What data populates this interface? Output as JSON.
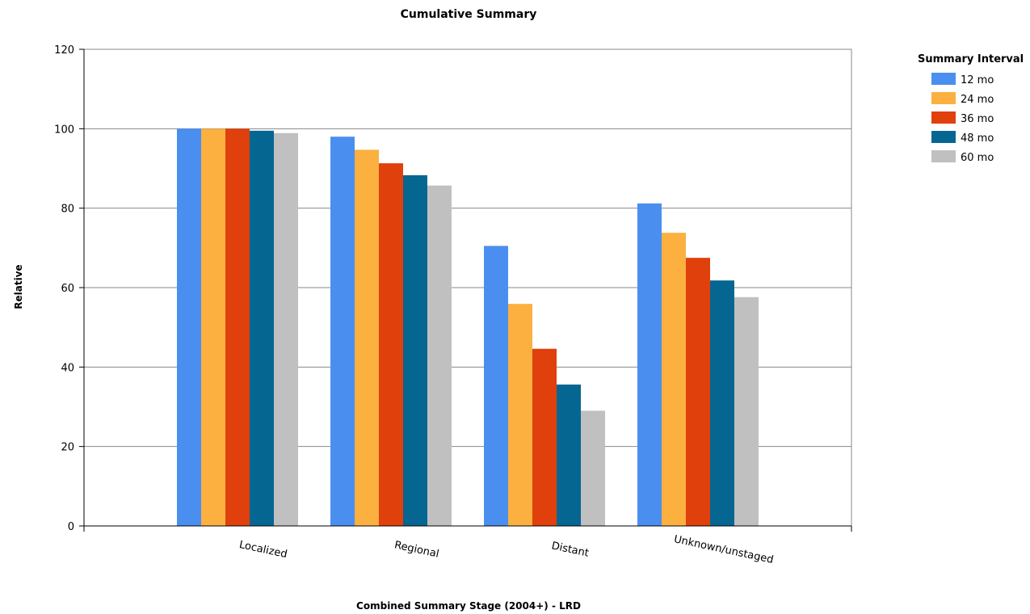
{
  "chart_data": {
    "type": "bar",
    "title": "Cumulative Summary",
    "xlabel": "Combined Summary Stage (2004+) - LRD",
    "ylabel": "Relative",
    "ylim": [
      0,
      120
    ],
    "yticks": [
      0,
      20,
      40,
      60,
      80,
      100,
      120
    ],
    "grid": true,
    "legend": {
      "title": "Summary Interval",
      "placement": "top-right"
    },
    "categories": [
      "Localized",
      "Regional",
      "Distant",
      "Unknown/unstaged"
    ],
    "series": [
      {
        "name": "12 mo",
        "color": "#4a8ff0",
        "values": [
          100,
          98.0,
          70.5,
          81.2
        ]
      },
      {
        "name": "24 mo",
        "color": "#fbb040",
        "values": [
          100,
          94.7,
          55.9,
          73.8
        ]
      },
      {
        "name": "36 mo",
        "color": "#e0400c",
        "values": [
          100,
          91.3,
          44.6,
          67.5
        ]
      },
      {
        "name": "48 mo",
        "color": "#066692",
        "values": [
          99.5,
          88.3,
          35.6,
          61.8
        ]
      },
      {
        "name": "60 mo",
        "color": "#c0c0c0",
        "values": [
          98.9,
          85.7,
          29.0,
          57.6
        ]
      }
    ]
  }
}
